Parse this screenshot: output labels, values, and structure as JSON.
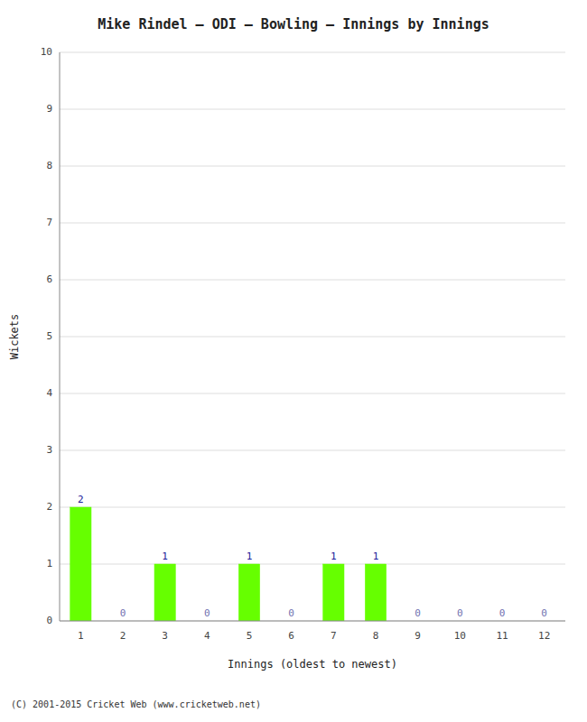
{
  "chart_data": {
    "type": "bar",
    "title": "Mike Rindel – ODI – Bowling – Innings by Innings",
    "x_label": "Innings (oldest to newest)",
    "y_label": "Wickets",
    "categories": [
      "1",
      "2",
      "3",
      "4",
      "5",
      "6",
      "7",
      "8",
      "9",
      "10",
      "11",
      "12"
    ],
    "values": [
      2,
      0,
      1,
      0,
      1,
      0,
      1,
      1,
      0,
      0,
      0,
      0
    ],
    "color": "#66ff00",
    "ylim": [
      0,
      10
    ],
    "yticks": [
      0,
      1,
      2,
      3,
      4,
      5,
      6,
      7,
      8,
      9,
      10
    ],
    "grid": true,
    "data_labels": true,
    "footer": "(C) 2001-2015 Cricket Web (www.cricketweb.net)"
  }
}
